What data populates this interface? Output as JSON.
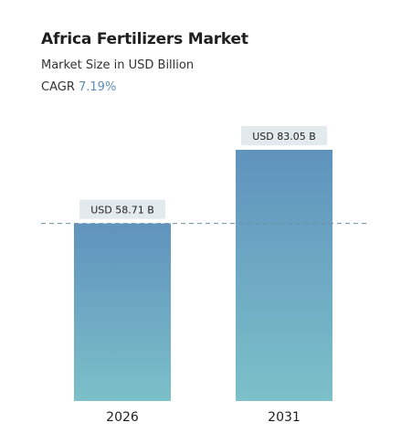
{
  "header": {
    "title": "Africa Fertilizers Market",
    "subtitle": "Market Size in USD Billion",
    "cagr_label": "CAGR",
    "cagr_value": "7.19%"
  },
  "colors": {
    "bar_top": "#5f93bd",
    "bar_bottom": "#7cc0c9",
    "label_bg": "#e3eaee",
    "reference_line": "#6f90a8",
    "cagr_accent": "#5b8db8"
  },
  "chart_data": {
    "type": "bar",
    "categories": [
      "2026",
      "2031"
    ],
    "values": [
      58.71,
      83.05
    ],
    "data_labels": [
      "USD 58.71 B",
      "USD 83.05 B"
    ],
    "ylim": [
      0,
      83.05
    ],
    "reference_line_value": 58.71,
    "grid": false,
    "legend": "none"
  }
}
